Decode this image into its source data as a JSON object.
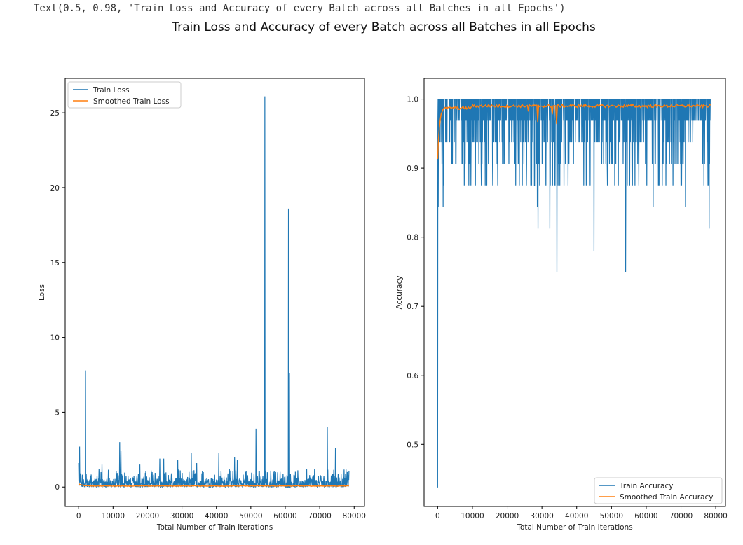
{
  "output_text": "Text(0.5, 0.98, 'Train Loss and Accuracy of every Batch across all Batches in all Epochs')",
  "suptitle": "Train Loss and Accuracy of every Batch across all Batches in all Epochs",
  "colors": {
    "train": "#1f77b4",
    "smoothed": "#ff7f0e",
    "axes": "#000000"
  },
  "chart_data": [
    {
      "type": "line",
      "xlabel": "Total Number of Train Iterations",
      "ylabel": "Loss",
      "xlim": [
        -3900,
        83000
      ],
      "ylim": [
        -1.3,
        27.3
      ],
      "xticks": [
        0,
        10000,
        20000,
        30000,
        40000,
        50000,
        60000,
        70000,
        80000
      ],
      "xtick_labels": [
        "0",
        "10000",
        "20000",
        "30000",
        "40000",
        "50000",
        "60000",
        "70000",
        "80000"
      ],
      "yticks": [
        0,
        5,
        10,
        15,
        20,
        25
      ],
      "ytick_labels": [
        "0",
        "5",
        "10",
        "15",
        "20",
        "25"
      ],
      "legend_position": "upper left",
      "grid": false,
      "series": [
        {
          "name": "Train Loss",
          "x_range": [
            0,
            78500
          ],
          "baseline": 0.25,
          "noise_band": [
            0.0,
            1.2
          ],
          "spikes": [
            [
              0,
              1.6
            ],
            [
              300,
              2.7
            ],
            [
              2000,
              7.8
            ],
            [
              6800,
              1.5
            ],
            [
              11900,
              3.0
            ],
            [
              12300,
              2.4
            ],
            [
              17800,
              1.5
            ],
            [
              23600,
              1.9
            ],
            [
              24700,
              1.9
            ],
            [
              28800,
              1.8
            ],
            [
              32700,
              2.3
            ],
            [
              34300,
              1.6
            ],
            [
              40700,
              2.3
            ],
            [
              45300,
              2.0
            ],
            [
              46100,
              1.8
            ],
            [
              51500,
              3.9
            ],
            [
              54100,
              26.1
            ],
            [
              60900,
              18.6
            ],
            [
              61200,
              7.6
            ],
            [
              72200,
              4.0
            ],
            [
              74600,
              2.6
            ],
            [
              78000,
              1.0
            ]
          ]
        },
        {
          "name": "Smoothed Train Loss",
          "x_range": [
            0,
            78500
          ],
          "start": 0.22,
          "level": 0.07
        }
      ]
    },
    {
      "type": "line",
      "xlabel": "Total Number of Train Iterations",
      "ylabel": "Accuracy",
      "xlim": [
        -3900,
        82800
      ],
      "ylim": [
        0.41,
        1.03
      ],
      "xticks": [
        0,
        10000,
        20000,
        30000,
        40000,
        50000,
        60000,
        70000,
        80000
      ],
      "xtick_labels": [
        "0",
        "10000",
        "20000",
        "30000",
        "40000",
        "50000",
        "60000",
        "70000",
        "80000"
      ],
      "yticks": [
        0.5,
        0.6,
        0.7,
        0.8,
        0.9,
        1.0
      ],
      "ytick_labels": [
        "0.5",
        "0.6",
        "0.7",
        "0.8",
        "0.9",
        "1.0"
      ],
      "legend_position": "lower right",
      "grid": false,
      "series": [
        {
          "name": "Train Accuracy",
          "x_range": [
            0,
            78500
          ],
          "band": [
            0.906,
            1.0
          ],
          "dips": [
            [
              0,
              0.4375
            ],
            [
              300,
              0.844
            ],
            [
              1600,
              0.844
            ],
            [
              28700,
              0.844
            ],
            [
              28900,
              0.8125
            ],
            [
              32300,
              0.8125
            ],
            [
              34300,
              0.75
            ],
            [
              45000,
              0.78
            ],
            [
              54100,
              0.75
            ],
            [
              62000,
              0.844
            ],
            [
              71300,
              0.844
            ],
            [
              78100,
              0.8125
            ]
          ]
        },
        {
          "name": "Smoothed Train Accuracy",
          "x_range": [
            0,
            78500
          ],
          "start": 0.915,
          "level": 0.99,
          "dips": [
            [
              28700,
              0.967
            ],
            [
              34300,
              0.964
            ],
            [
              26000,
              0.982
            ],
            [
              33000,
              0.978
            ]
          ]
        }
      ]
    }
  ]
}
